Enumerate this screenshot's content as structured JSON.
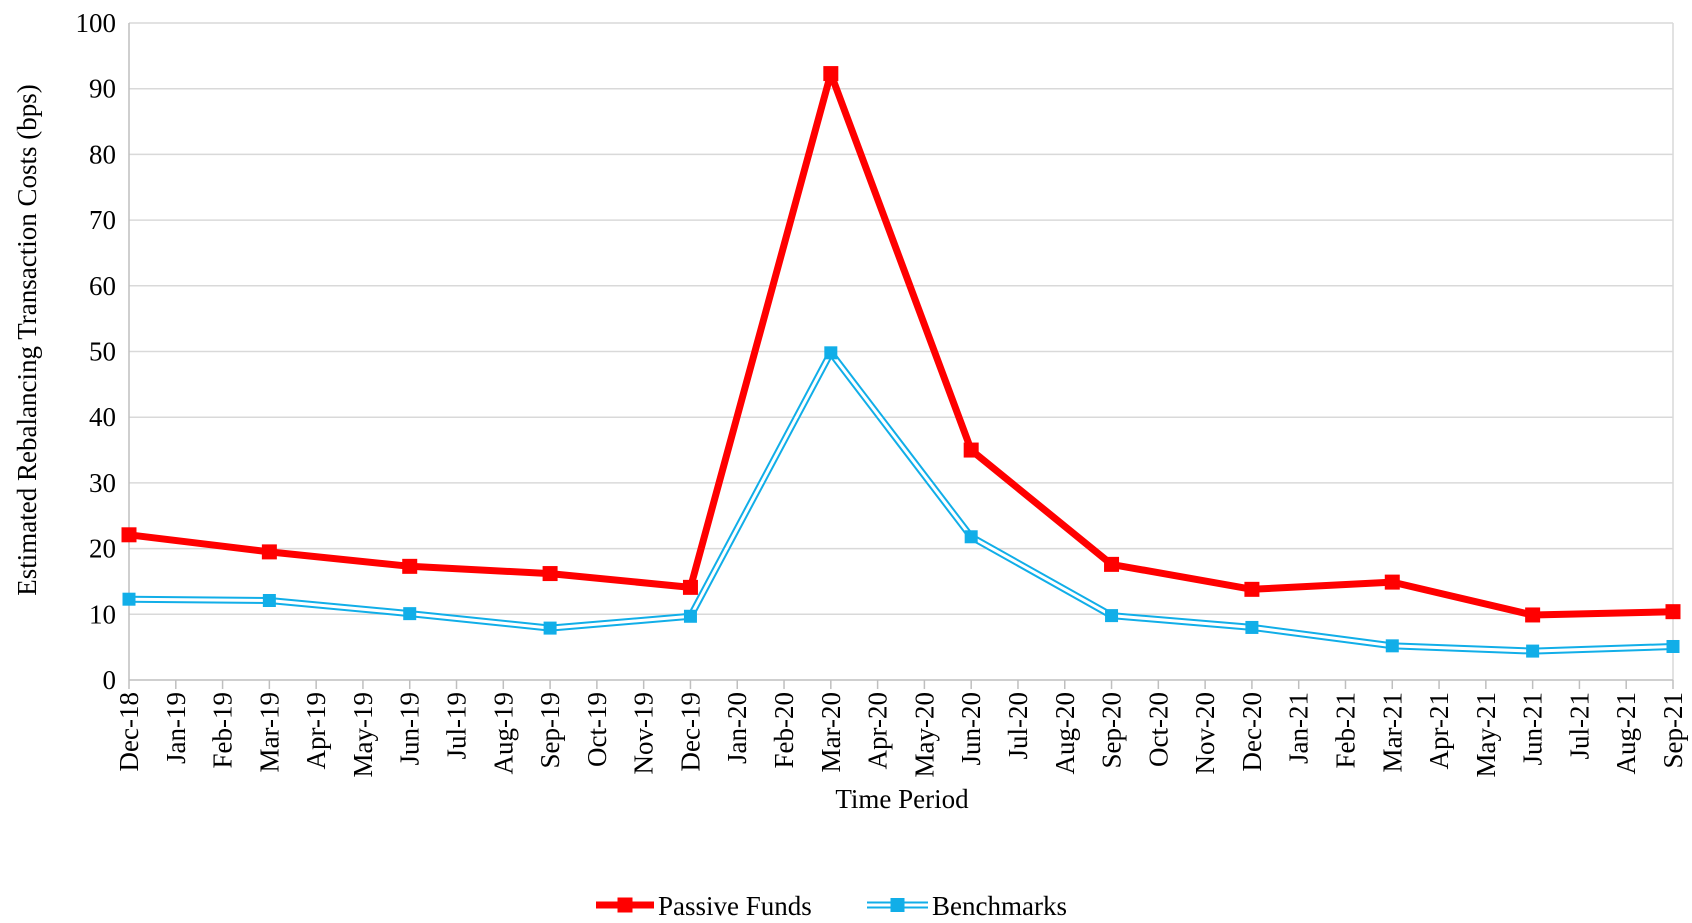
{
  "chart_data": {
    "type": "line",
    "title": "",
    "xlabel": "Time Period",
    "ylabel": "Estimated Rebalancing Transaction Costs (bps)",
    "ylim": [
      0,
      100
    ],
    "yticks": [
      0,
      10,
      20,
      30,
      40,
      50,
      60,
      70,
      80,
      90,
      100
    ],
    "grid": true,
    "legend_position": "bottom",
    "categories": [
      "Dec-18",
      "Jan-19",
      "Feb-19",
      "Mar-19",
      "Apr-19",
      "May-19",
      "Jun-19",
      "Jul-19",
      "Aug-19",
      "Sep-19",
      "Oct-19",
      "Nov-19",
      "Dec-19",
      "Jan-20",
      "Feb-20",
      "Mar-20",
      "Apr-20",
      "May-20",
      "Jun-20",
      "Jul-20",
      "Aug-20",
      "Sep-20",
      "Oct-20",
      "Nov-20",
      "Dec-20",
      "Jan-21",
      "Feb-21",
      "Mar-21",
      "Apr-21",
      "May-21",
      "Jun-21",
      "Jul-21",
      "Aug-21",
      "Sep-21"
    ],
    "series": [
      {
        "name": "Passive Funds",
        "color": "#ff0000",
        "style": "thick",
        "points": [
          {
            "x": "Dec-18",
            "y": 22.1
          },
          {
            "x": "Mar-19",
            "y": 19.5
          },
          {
            "x": "Jun-19",
            "y": 17.3
          },
          {
            "x": "Sep-19",
            "y": 16.2
          },
          {
            "x": "Dec-19",
            "y": 14.1
          },
          {
            "x": "Mar-20",
            "y": 92.3
          },
          {
            "x": "Jun-20",
            "y": 35.0
          },
          {
            "x": "Sep-20",
            "y": 17.6
          },
          {
            "x": "Dec-20",
            "y": 13.8
          },
          {
            "x": "Mar-21",
            "y": 14.9
          },
          {
            "x": "Jun-21",
            "y": 9.9
          },
          {
            "x": "Sep-21",
            "y": 10.4
          }
        ]
      },
      {
        "name": "Benchmarks",
        "color": "#11aee8",
        "style": "double",
        "points": [
          {
            "x": "Dec-18",
            "y": 12.3
          },
          {
            "x": "Mar-19",
            "y": 12.1
          },
          {
            "x": "Jun-19",
            "y": 10.1
          },
          {
            "x": "Sep-19",
            "y": 7.9
          },
          {
            "x": "Dec-19",
            "y": 9.7
          },
          {
            "x": "Mar-20",
            "y": 49.8
          },
          {
            "x": "Jun-20",
            "y": 21.8
          },
          {
            "x": "Sep-20",
            "y": 9.8
          },
          {
            "x": "Dec-20",
            "y": 8.0
          },
          {
            "x": "Mar-21",
            "y": 5.2
          },
          {
            "x": "Jun-21",
            "y": 4.4
          },
          {
            "x": "Sep-21",
            "y": 5.1
          }
        ]
      }
    ]
  }
}
